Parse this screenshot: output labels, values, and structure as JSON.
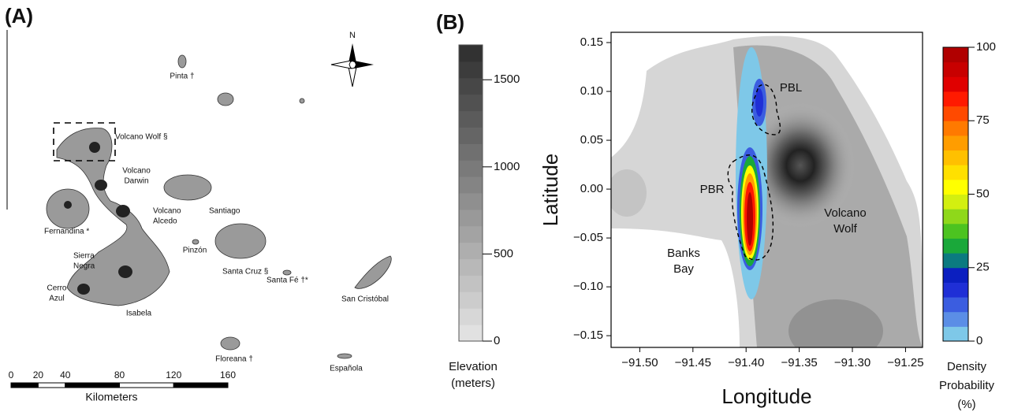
{
  "panel_a": {
    "label": "(A)",
    "north": "N",
    "islands": [
      {
        "lines": [
          "Pinta †"
        ]
      },
      {
        "lines": [
          "Volcano Wolf §"
        ]
      },
      {
        "lines": [
          "Volcano",
          "Darwin"
        ]
      },
      {
        "lines": [
          "Volcano",
          "Alcedo"
        ]
      },
      {
        "lines": [
          "Santiago"
        ]
      },
      {
        "lines": [
          "Fernandina *"
        ]
      },
      {
        "lines": [
          "Pinzón"
        ]
      },
      {
        "lines": [
          "Sierra",
          "Negra"
        ]
      },
      {
        "lines": [
          "Santa Cruz §"
        ]
      },
      {
        "lines": [
          "Santa Fé †*"
        ]
      },
      {
        "lines": [
          "Cerro",
          "Azul"
        ]
      },
      {
        "lines": [
          "Isabela"
        ]
      },
      {
        "lines": [
          "San Cristóbal"
        ]
      },
      {
        "lines": [
          "Floreana †"
        ]
      },
      {
        "lines": [
          "Española"
        ]
      }
    ],
    "scale_bar": {
      "ticks": [
        0,
        20,
        40,
        80,
        120,
        160
      ],
      "label": "Kilometers"
    }
  },
  "elevation_colorbar": {
    "title": [
      "Elevation",
      "(meters)"
    ],
    "lim": [
      0,
      1700
    ],
    "ticks": [
      0,
      500,
      1000,
      1500
    ]
  },
  "chart_data": {
    "type": "contour",
    "panel_label": "(B)",
    "x_label": "Longitude",
    "y_label": "Latitude",
    "xlim": [
      -91.527,
      -91.234
    ],
    "ylim": [
      -0.162,
      0.1605
    ],
    "xticks": [
      {
        "value": -91.5,
        "label": "−91.50"
      },
      {
        "value": -91.45,
        "label": "−91.45"
      },
      {
        "value": -91.4,
        "label": "−91.40"
      },
      {
        "value": -91.35,
        "label": "−91.35"
      },
      {
        "value": -91.3,
        "label": "−91.30"
      },
      {
        "value": -91.25,
        "label": "−91.25"
      }
    ],
    "yticks": [
      {
        "value": 0.15,
        "label": "0.15"
      },
      {
        "value": 0.1,
        "label": "0.10"
      },
      {
        "value": 0.05,
        "label": "0.05"
      },
      {
        "value": 0,
        "label": "0.00"
      },
      {
        "value": -0.05,
        "label": "−0.05"
      },
      {
        "value": -0.1,
        "label": "−0.10"
      },
      {
        "value": -0.15,
        "label": "−0.15"
      }
    ],
    "annotations": [
      {
        "lines": [
          "PBL"
        ]
      },
      {
        "lines": [
          "PBR"
        ]
      },
      {
        "lines": [
          "Volcano",
          "Wolf"
        ]
      },
      {
        "lines": [
          "Banks",
          "Bay"
        ]
      }
    ],
    "colorbar": {
      "title": [
        "Density",
        "Probability",
        "(%)"
      ],
      "lim": [
        0,
        100
      ],
      "ticks": [
        0,
        25,
        50,
        75,
        100
      ],
      "colors": [
        "#7ec8e8",
        "#5b8ee6",
        "#3b5de0",
        "#1f2fd6",
        "#0b1fc0",
        "#0b7a80",
        "#1aa83a",
        "#4cc320",
        "#8fd81a",
        "#d3ef10",
        "#ffff00",
        "#ffe000",
        "#ffc000",
        "#ff9d00",
        "#ff7a00",
        "#ff4a00",
        "#ff1a00",
        "#e00000",
        "#c80000",
        "#b00000"
      ]
    }
  }
}
